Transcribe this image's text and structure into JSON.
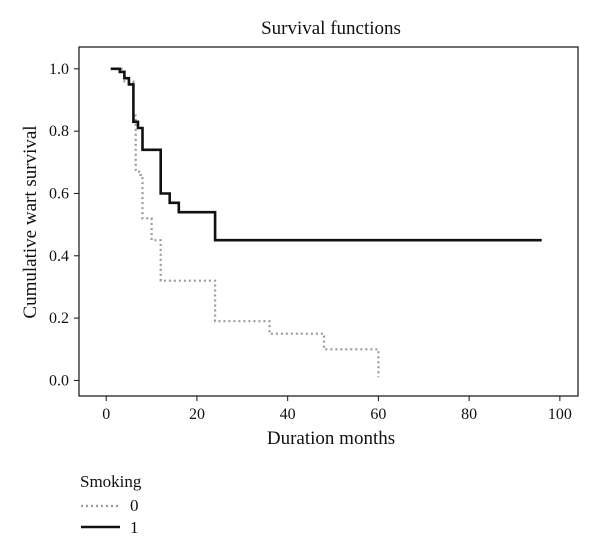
{
  "chart_data": {
    "type": "line",
    "step": true,
    "title": "Survival functions",
    "xlabel": "Duration months",
    "ylabel": "Cumulative wart survival",
    "xlim": [
      -6,
      104
    ],
    "ylim": [
      -0.05,
      1.07
    ],
    "xticks": [
      0,
      20,
      40,
      60,
      80,
      100
    ],
    "yticks": [
      0.0,
      0.2,
      0.4,
      0.6,
      0.8,
      1.0
    ],
    "ytick_labels": [
      "0.0",
      "0.2",
      "0.4",
      "0.6",
      "0.8",
      "1.0"
    ],
    "grid": false,
    "legend": {
      "title": "Smoking",
      "position": "bottom-left",
      "entries": [
        "0",
        "1"
      ]
    },
    "series": [
      {
        "name": "0",
        "style": "dotted",
        "color": "#9a9a9a",
        "points": [
          [
            1,
            1.0
          ],
          [
            4,
            1.0
          ],
          [
            4,
            0.96
          ],
          [
            6,
            0.96
          ],
          [
            6,
            0.85
          ],
          [
            6.5,
            0.85
          ],
          [
            6.5,
            0.67
          ],
          [
            7.5,
            0.67
          ],
          [
            7.5,
            0.66
          ],
          [
            8,
            0.66
          ],
          [
            8,
            0.52
          ],
          [
            9,
            0.52
          ],
          [
            9,
            0.52
          ],
          [
            10,
            0.52
          ],
          [
            10,
            0.45
          ],
          [
            11,
            0.45
          ],
          [
            11,
            0.45
          ],
          [
            12,
            0.45
          ],
          [
            12,
            0.32
          ],
          [
            24,
            0.32
          ],
          [
            24,
            0.19
          ],
          [
            36,
            0.19
          ],
          [
            36,
            0.15
          ],
          [
            48,
            0.15
          ],
          [
            48,
            0.1
          ],
          [
            60,
            0.1
          ],
          [
            60,
            0.01
          ]
        ]
      },
      {
        "name": "1",
        "style": "solid",
        "color": "#111111",
        "points": [
          [
            1,
            1.0
          ],
          [
            3,
            1.0
          ],
          [
            3,
            0.99
          ],
          [
            4,
            0.99
          ],
          [
            4,
            0.97
          ],
          [
            5,
            0.97
          ],
          [
            5,
            0.95
          ],
          [
            6,
            0.95
          ],
          [
            6,
            0.83
          ],
          [
            7,
            0.83
          ],
          [
            7,
            0.81
          ],
          [
            8,
            0.81
          ],
          [
            8,
            0.74
          ],
          [
            12,
            0.74
          ],
          [
            12,
            0.6
          ],
          [
            14,
            0.6
          ],
          [
            14,
            0.57
          ],
          [
            16,
            0.57
          ],
          [
            16,
            0.54
          ],
          [
            24,
            0.54
          ],
          [
            24,
            0.45
          ],
          [
            96,
            0.45
          ]
        ]
      }
    ]
  },
  "colors": {
    "background": "#ffffff",
    "axis": "#111111",
    "series_0": "#9a9a9a",
    "series_1": "#111111"
  }
}
